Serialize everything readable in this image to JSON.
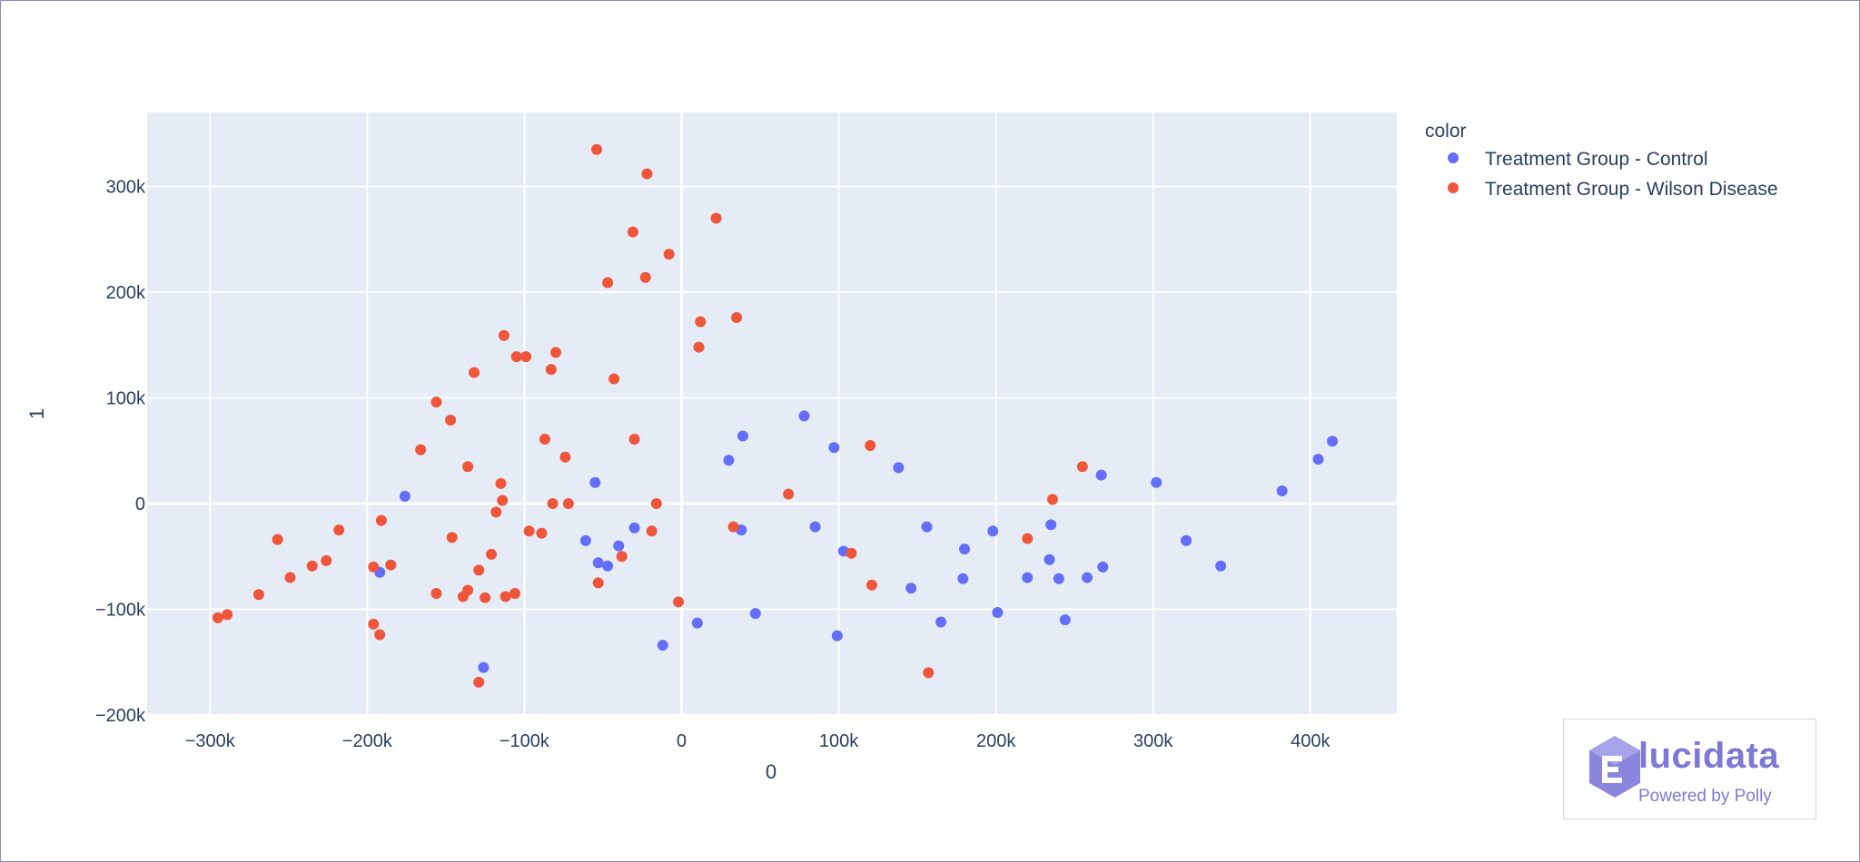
{
  "chart_data": {
    "type": "scatter",
    "xlabel": "0",
    "ylabel": "1",
    "xlim": [
      -340000,
      455000
    ],
    "ylim": [
      -200000,
      370000
    ],
    "x_ticks": [
      {
        "value": -300000,
        "label": "−300k"
      },
      {
        "value": -200000,
        "label": "−200k"
      },
      {
        "value": -100000,
        "label": "−100k"
      },
      {
        "value": 0,
        "label": "0"
      },
      {
        "value": 100000,
        "label": "100k"
      },
      {
        "value": 200000,
        "label": "200k"
      },
      {
        "value": 300000,
        "label": "300k"
      },
      {
        "value": 400000,
        "label": "400k"
      }
    ],
    "y_ticks": [
      {
        "value": -200000,
        "label": "−200k"
      },
      {
        "value": -100000,
        "label": "−100k"
      },
      {
        "value": 0,
        "label": "0"
      },
      {
        "value": 100000,
        "label": "100k"
      },
      {
        "value": 200000,
        "label": "200k"
      },
      {
        "value": 300000,
        "label": "300k"
      }
    ],
    "grid": true,
    "legend": {
      "title": "color",
      "placement": "right"
    },
    "series": [
      {
        "name": "Treatment Group - Control",
        "color": "#636efa",
        "points": [
          [
            -176000,
            7000
          ],
          [
            -192000,
            -65000
          ],
          [
            -126000,
            -155000
          ],
          [
            -55000,
            20000
          ],
          [
            -61000,
            -35000
          ],
          [
            -53000,
            -56000
          ],
          [
            -47000,
            -59000
          ],
          [
            -40000,
            -40000
          ],
          [
            -30000,
            -23000
          ],
          [
            -12000,
            -134000
          ],
          [
            10000,
            -113000
          ],
          [
            30000,
            41000
          ],
          [
            39000,
            64000
          ],
          [
            38000,
            -25000
          ],
          [
            47000,
            -104000
          ],
          [
            78000,
            83000
          ],
          [
            85000,
            -22000
          ],
          [
            97000,
            53000
          ],
          [
            99000,
            -125000
          ],
          [
            103000,
            -45000
          ],
          [
            138000,
            34000
          ],
          [
            146000,
            -80000
          ],
          [
            156000,
            -22000
          ],
          [
            165000,
            -112000
          ],
          [
            179000,
            -71000
          ],
          [
            180000,
            -43000
          ],
          [
            198000,
            -26000
          ],
          [
            201000,
            -103000
          ],
          [
            220000,
            -70000
          ],
          [
            234000,
            -53000
          ],
          [
            235000,
            -20000
          ],
          [
            240000,
            -71000
          ],
          [
            244000,
            -110000
          ],
          [
            258000,
            -70000
          ],
          [
            267000,
            27000
          ],
          [
            268000,
            -60000
          ],
          [
            302000,
            20000
          ],
          [
            321000,
            -35000
          ],
          [
            343000,
            -59000
          ],
          [
            382000,
            12000
          ],
          [
            405000,
            42000
          ],
          [
            414000,
            59000
          ]
        ]
      },
      {
        "name": "Treatment Group - Wilson Disease",
        "color": "#ef553b",
        "points": [
          [
            -295000,
            -108000
          ],
          [
            -289000,
            -105000
          ],
          [
            -269000,
            -86000
          ],
          [
            -257000,
            -34000
          ],
          [
            -249000,
            -70000
          ],
          [
            -235000,
            -59000
          ],
          [
            -226000,
            -54000
          ],
          [
            -218000,
            -25000
          ],
          [
            -196000,
            -60000
          ],
          [
            -196000,
            -114000
          ],
          [
            -192000,
            -124000
          ],
          [
            -191000,
            -16000
          ],
          [
            -185000,
            -58000
          ],
          [
            -166000,
            51000
          ],
          [
            -156000,
            96000
          ],
          [
            -156000,
            -85000
          ],
          [
            -147000,
            79000
          ],
          [
            -146000,
            -32000
          ],
          [
            -136000,
            35000
          ],
          [
            -136000,
            -82000
          ],
          [
            -139000,
            -88000
          ],
          [
            -132000,
            124000
          ],
          [
            -129000,
            -63000
          ],
          [
            -129000,
            -169000
          ],
          [
            -125000,
            -89000
          ],
          [
            -121000,
            -48000
          ],
          [
            -118000,
            -8000
          ],
          [
            -115000,
            19000
          ],
          [
            -114000,
            3000
          ],
          [
            -113000,
            159000
          ],
          [
            -112000,
            -88000
          ],
          [
            -106000,
            -85000
          ],
          [
            -105000,
            139000
          ],
          [
            -99000,
            139000
          ],
          [
            -97000,
            -26000
          ],
          [
            -89000,
            -28000
          ],
          [
            -87000,
            61000
          ],
          [
            -83000,
            127000
          ],
          [
            -82000,
            0
          ],
          [
            -80000,
            143000
          ],
          [
            -74000,
            44000
          ],
          [
            -72000,
            0
          ],
          [
            -54000,
            335000
          ],
          [
            -53000,
            -75000
          ],
          [
            -47000,
            209000
          ],
          [
            -43000,
            118000
          ],
          [
            -38000,
            -50000
          ],
          [
            -31000,
            257000
          ],
          [
            -30000,
            61000
          ],
          [
            -23000,
            214000
          ],
          [
            -22000,
            312000
          ],
          [
            -19000,
            -26000
          ],
          [
            -16000,
            0
          ],
          [
            -8000,
            236000
          ],
          [
            -2000,
            -93000
          ],
          [
            11000,
            148000
          ],
          [
            12000,
            172000
          ],
          [
            22000,
            270000
          ],
          [
            33000,
            -22000
          ],
          [
            35000,
            176000
          ],
          [
            68000,
            9000
          ],
          [
            108000,
            -47000
          ],
          [
            120000,
            55000
          ],
          [
            121000,
            -77000
          ],
          [
            157000,
            -160000
          ],
          [
            220000,
            -33000
          ],
          [
            236000,
            4000
          ],
          [
            255000,
            35000
          ]
        ]
      }
    ]
  },
  "logo": {
    "brand": "lucidata",
    "brand_full": "Elucidata",
    "tagline": "Powered by Polly",
    "color": "#7d79d6"
  }
}
